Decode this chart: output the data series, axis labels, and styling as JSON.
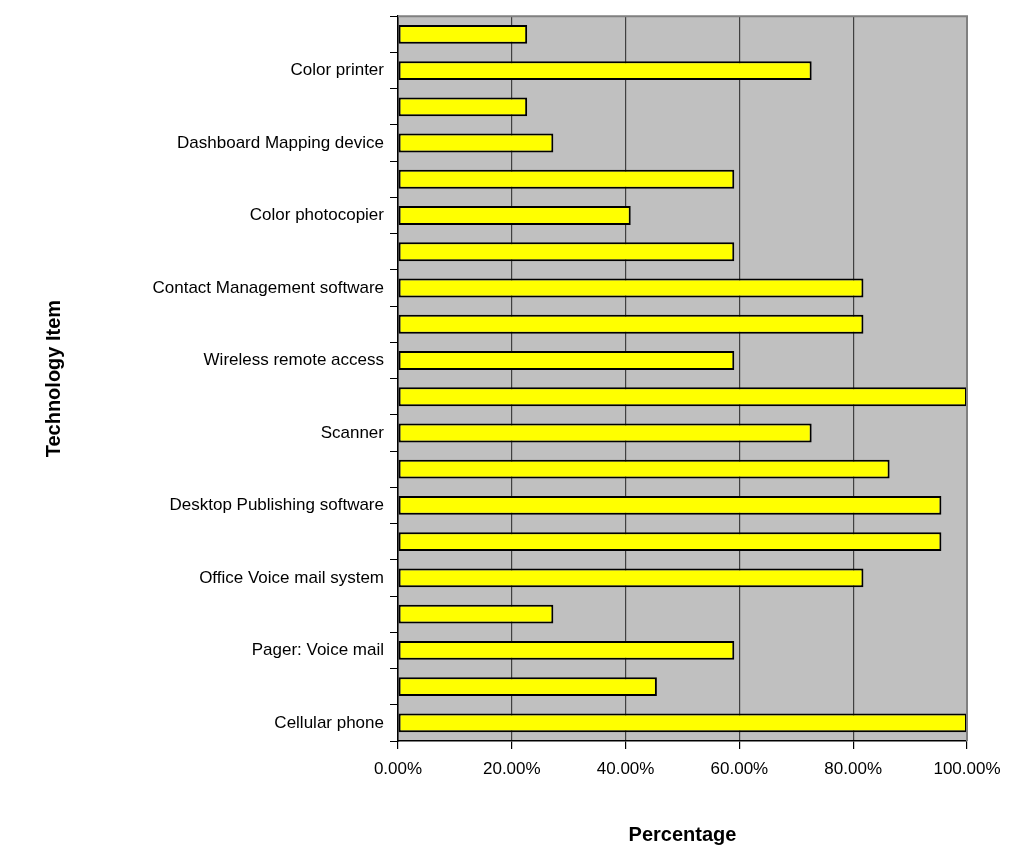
{
  "chart_data": {
    "type": "bar",
    "orientation": "horizontal",
    "xlabel": "Percentage",
    "ylabel": "Technology Item",
    "categories": [
      null,
      "Color printer",
      null,
      "Dashboard Mapping device",
      null,
      "Color photocopier",
      null,
      "Contact Management software",
      null,
      "Wireless remote access",
      null,
      "Scanner",
      null,
      "Desktop Publishing software",
      null,
      "Office Voice mail system",
      null,
      "Pager: Voice mail",
      null,
      "Cellular phone"
    ],
    "values": [
      22.7,
      72.7,
      22.7,
      27.3,
      59.1,
      40.9,
      59.1,
      81.8,
      81.8,
      59.1,
      100,
      72.7,
      86.4,
      95.5,
      95.5,
      81.8,
      27.3,
      59.1,
      45.5,
      100
    ],
    "color": "#ffff00",
    "xlim": [
      0,
      100
    ],
    "xticks": [
      {
        "value": 0,
        "label": "0.00%"
      },
      {
        "value": 20,
        "label": "20.00%"
      },
      {
        "value": 40,
        "label": "40.00%"
      },
      {
        "value": 60,
        "label": "60.00%"
      },
      {
        "value": 80,
        "label": "80.00%"
      },
      {
        "value": 100,
        "label": "100.00%"
      }
    ],
    "grid": "x",
    "legend": false
  }
}
